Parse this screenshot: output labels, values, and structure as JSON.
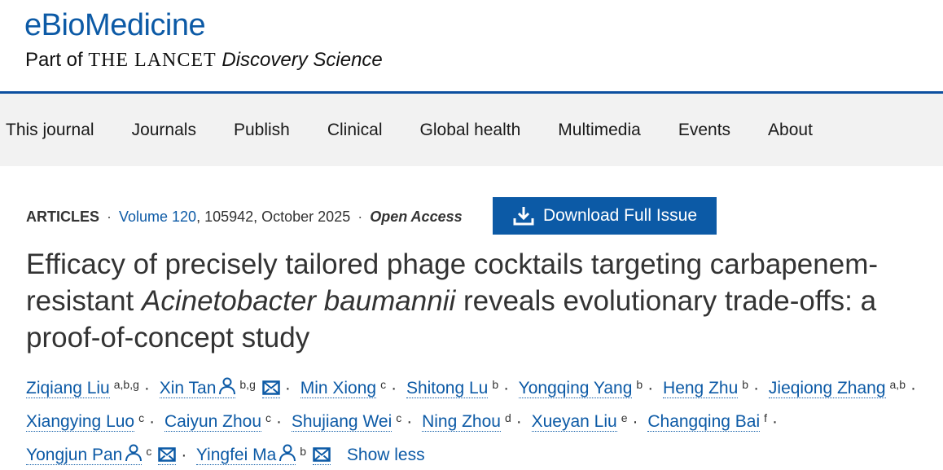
{
  "header": {
    "journal": "eBioMedicine",
    "sub_prefix": "Part of",
    "sub_caps": "THE LANCET",
    "sub_italic": "Discovery Science"
  },
  "nav": [
    "This journal",
    "Journals",
    "Publish",
    "Clinical",
    "Global health",
    "Multimedia",
    "Events",
    "About"
  ],
  "meta": {
    "type": "ARTICLES",
    "volume": "Volume 120",
    "details": ", 105942, October 2025",
    "access": "Open Access"
  },
  "download_label": "Download Full Issue",
  "title": {
    "part1": "Efficacy of precisely tailored phage cocktails targeting carbapenem-resistant ",
    "italic": "Acinetobacter baumannii",
    "part2": " reveals evolutionary trade-offs: a proof-of-concept study"
  },
  "authors": [
    {
      "name": "Ziqiang Liu",
      "sup": "a,b,g"
    },
    {
      "name": "Xin Tan",
      "sup": "b,g",
      "person": true,
      "mail": true
    },
    {
      "name": "Min Xiong",
      "sup": "c"
    },
    {
      "name": "Shitong Lu",
      "sup": "b"
    },
    {
      "name": "Yongqing Yang",
      "sup": "b"
    },
    {
      "name": "Heng Zhu",
      "sup": "b"
    },
    {
      "name": "Jieqiong Zhang",
      "sup": "a,b"
    },
    {
      "name": "Xiangying Luo",
      "sup": "c"
    },
    {
      "name": "Caiyun Zhou",
      "sup": "c"
    },
    {
      "name": "Shujiang Wei",
      "sup": "c"
    },
    {
      "name": "Ning Zhou",
      "sup": "d"
    },
    {
      "name": "Xueyan Liu",
      "sup": "e"
    },
    {
      "name": "Changqing Bai",
      "sup": "f"
    },
    {
      "name": "Yongjun Pan",
      "sup": "c",
      "person": true,
      "mail": true
    },
    {
      "name": "Yingfei Ma",
      "sup": "b",
      "person": true,
      "mail": true
    }
  ],
  "show_less": "Show less",
  "colors": {
    "brand": "#0c5aa6",
    "nav_bg": "#f2f2f2"
  }
}
